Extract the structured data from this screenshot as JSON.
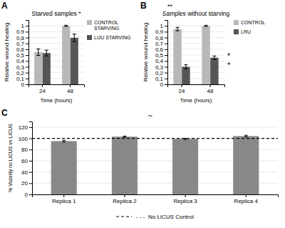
{
  "chart_data": [
    {
      "type": "bar",
      "title": "Starved samples *",
      "x_label": "Time (hours)",
      "y_label": "Relative wound healing",
      "categories": [
        "24",
        "48"
      ],
      "series": [
        {
          "name": "CONTROL\nSTARVING",
          "color": "#b8b8b8",
          "values": [
            0.55,
            1.0
          ],
          "errors": [
            0.055,
            0.01
          ]
        },
        {
          "name": "LIJU STARVING",
          "color": "#555555",
          "values": [
            0.535,
            0.795
          ],
          "errors": [
            0.05,
            0.065
          ]
        }
      ],
      "ylim": [
        0,
        1.1
      ],
      "yticks": [
        0,
        {
          "value": 0.1,
          "label": "0,1"
        },
        {
          "value": 0.2,
          "label": "0,2"
        },
        {
          "value": 0.3,
          "label": "0,3"
        },
        {
          "value": 0.4,
          "label": "0,4"
        },
        {
          "value": 0.5,
          "label": "0,5"
        },
        {
          "value": 0.6,
          "label": "0,6"
        },
        {
          "value": 0.7,
          "label": "0,7"
        },
        {
          "value": 0.8,
          "label": "0,8"
        },
        {
          "value": 0.9,
          "label": "0,9"
        },
        1
      ],
      "grid": true,
      "legend": "right",
      "annotations": [
        "A"
      ]
    },
    {
      "type": "bar",
      "title": "Samples without starving",
      "x_label": "Time (hours)",
      "y_label": "Relative wound healing",
      "categories": [
        "24",
        "48"
      ],
      "series": [
        {
          "name": "CONTROL",
          "color": "#b8b8b8",
          "values": [
            0.945,
            1.0
          ],
          "errors": [
            0.03,
            0.01
          ]
        },
        {
          "name": "LRU",
          "color": "#555555",
          "values": [
            0.3,
            0.455
          ],
          "errors": [
            0.035,
            0.03
          ]
        }
      ],
      "ylim": [
        0,
        1.1
      ],
      "yticks": [
        0,
        {
          "value": 0.1,
          "label": "0,1"
        },
        {
          "value": 0.2,
          "label": "0,2"
        },
        {
          "value": 0.3,
          "label": "0,3"
        },
        {
          "value": 0.4,
          "label": "0,4"
        },
        {
          "value": 0.5,
          "label": "0,5"
        },
        {
          "value": 0.6,
          "label": "0,6"
        },
        {
          "value": 0.7,
          "label": "0,7"
        },
        {
          "value": 0.8,
          "label": "0,8"
        },
        {
          "value": 0.9,
          "label": "0,9"
        },
        1
      ],
      "grid": true,
      "legend": "right",
      "annotations": [
        "B",
        "**",
        "*",
        "*"
      ]
    },
    {
      "type": "bar",
      "y_label": "% Viability no LICUS vs LICUS",
      "categories": [
        "Replica 1",
        "Replica 2",
        "Replica 3",
        "Replica 4"
      ],
      "values": [
        95,
        103,
        99,
        104
      ],
      "errors": [
        1.5,
        1.0,
        1.0,
        1.5
      ],
      "color": "#888888",
      "reference_line": {
        "value": 100,
        "label": "- - -  No LICUS Control",
        "line_style": "dashed"
      },
      "ylim": [
        0,
        130
      ],
      "yticks": [
        0,
        20,
        40,
        60,
        80,
        100,
        120
      ],
      "grid": true,
      "legend": "bottom",
      "annotations": [
        "C",
        "~"
      ]
    }
  ]
}
